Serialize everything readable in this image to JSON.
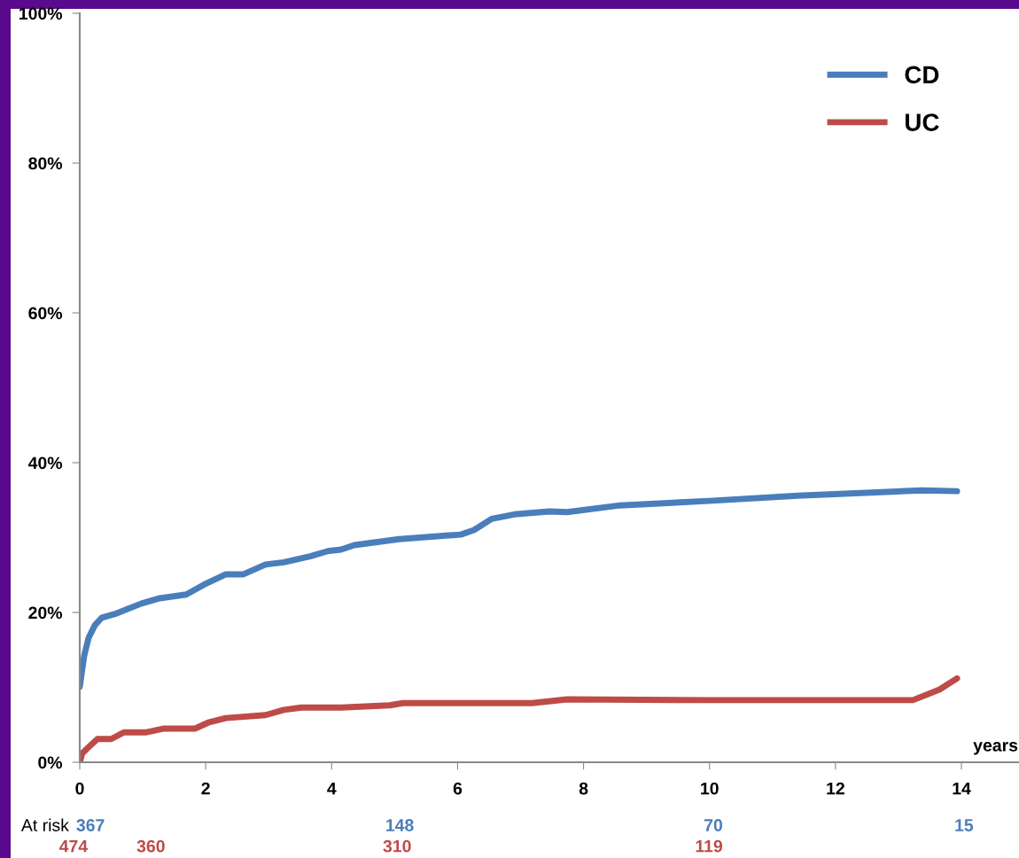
{
  "chart_data": {
    "type": "line",
    "xlabel": "years",
    "xlim": [
      0,
      14.9
    ],
    "xticks": [
      0,
      2,
      4,
      6,
      8,
      10,
      12,
      14
    ],
    "ylim": [
      0,
      100
    ],
    "yticks": [
      {
        "value": 0,
        "label": "0%"
      },
      {
        "value": 20,
        "label": "20%"
      },
      {
        "value": 40,
        "label": "40%"
      },
      {
        "value": 60,
        "label": "60%"
      },
      {
        "value": 80,
        "label": "80%"
      },
      {
        "value": 100,
        "label": "100%"
      }
    ],
    "grid": false,
    "legend": "top right",
    "marker": "none",
    "line_style": "solid",
    "series": [
      {
        "name": "CD",
        "color": "#4a7ebb",
        "x": [
          0,
          0.07,
          0.14,
          0.24,
          0.35,
          0.56,
          0.77,
          0.98,
          1.27,
          1.69,
          1.97,
          2.32,
          2.6,
          2.95,
          3.24,
          3.66,
          3.94,
          4.15,
          4.36,
          5.07,
          6.05,
          6.26,
          6.54,
          6.9,
          7.46,
          7.74,
          8.58,
          9.99,
          11.4,
          13.37,
          13.93
        ],
        "values": [
          10.1,
          14.2,
          16.6,
          18.3,
          19.3,
          19.8,
          20.5,
          21.2,
          21.9,
          22.4,
          23.7,
          25.1,
          25.1,
          26.4,
          26.7,
          27.5,
          28.2,
          28.4,
          29.0,
          29.8,
          30.4,
          31.0,
          32.5,
          33.1,
          33.5,
          33.4,
          34.3,
          34.9,
          35.6,
          36.3,
          36.2
        ]
      },
      {
        "name": "UC",
        "color": "#be4b48",
        "x": [
          0,
          0.04,
          0.14,
          0.28,
          0.5,
          0.7,
          1.06,
          1.34,
          1.83,
          2.04,
          2.32,
          2.95,
          3.24,
          3.52,
          4.15,
          4.92,
          5.13,
          7.18,
          7.74,
          9.99,
          13.23,
          13.65,
          13.93
        ],
        "values": [
          0,
          1.2,
          2.0,
          3.1,
          3.1,
          4.0,
          4.0,
          4.5,
          4.5,
          5.3,
          5.9,
          6.3,
          7.0,
          7.3,
          7.3,
          7.6,
          7.9,
          7.9,
          8.4,
          8.3,
          8.3,
          9.7,
          11.2
        ]
      }
    ],
    "annotations": [
      "At risk",
      "367",
      "148",
      "70",
      "15",
      "474",
      "360",
      "310",
      "119"
    ]
  }
}
